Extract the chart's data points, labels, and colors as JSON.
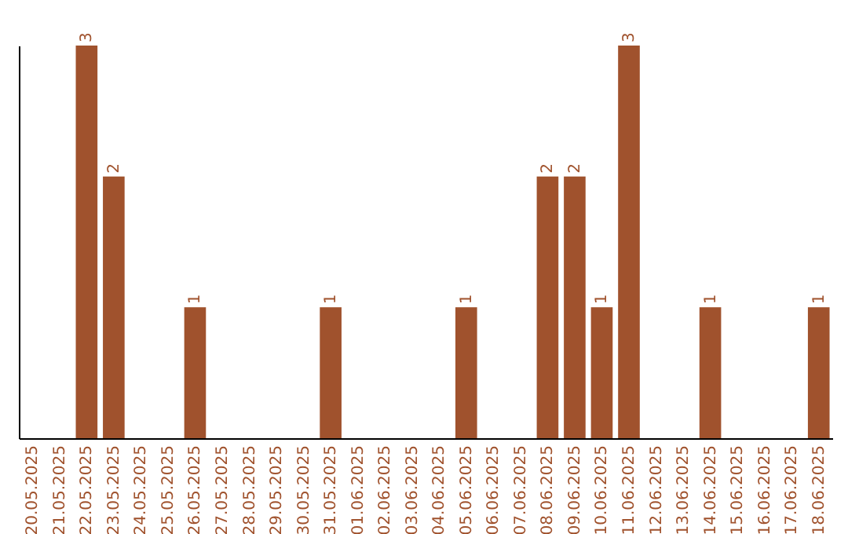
{
  "chart_data": {
    "type": "bar",
    "categories": [
      "20.05.2025",
      "21.05.2025",
      "22.05.2025",
      "23.05.2025",
      "24.05.2025",
      "25.05.2025",
      "26.05.2025",
      "27.05.2025",
      "28.05.2025",
      "29.05.2025",
      "30.05.2025",
      "31.05.2025",
      "01.06.2025",
      "02.06.2025",
      "03.06.2025",
      "04.06.2025",
      "05.06.2025",
      "06.06.2025",
      "07.06.2025",
      "08.06.2025",
      "09.06.2025",
      "10.06.2025",
      "11.06.2025",
      "12.06.2025",
      "13.06.2025",
      "14.06.2025",
      "15.06.2025",
      "16.06.2025",
      "17.06.2025",
      "18.06.2025"
    ],
    "values": [
      0,
      0,
      3,
      2,
      0,
      0,
      1,
      0,
      0,
      0,
      0,
      1,
      0,
      0,
      0,
      0,
      1,
      0,
      0,
      2,
      2,
      1,
      3,
      0,
      0,
      1,
      0,
      0,
      0,
      1
    ],
    "value_labels": [
      null,
      null,
      "3",
      "2",
      null,
      null,
      "1",
      null,
      null,
      null,
      null,
      "1",
      null,
      null,
      null,
      null,
      "1",
      null,
      null,
      "2",
      "2",
      "1",
      "3",
      null,
      null,
      "1",
      null,
      null,
      null,
      "1"
    ],
    "color": "#a0522d"
  }
}
